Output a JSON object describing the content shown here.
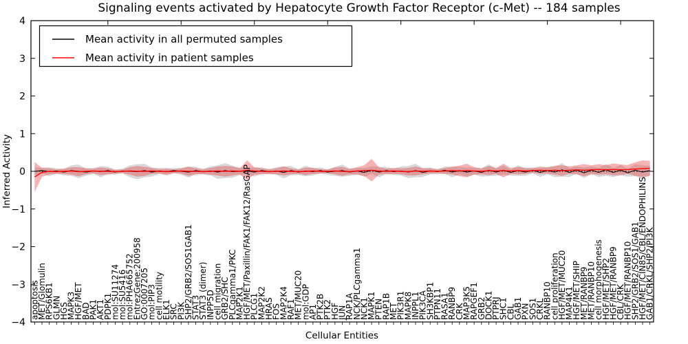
{
  "chart_data": {
    "type": "line",
    "title": "Signaling events activated by Hepatocyte Growth Factor Receptor (c-Met) -- 184 samples",
    "xlabel": "Cellular Entities",
    "ylabel": "Inferred Activity",
    "ylim": [
      -4,
      4
    ],
    "yticks": [
      4,
      3,
      2,
      1,
      0,
      -1,
      -2,
      -3,
      -4
    ],
    "grid": false,
    "legend_position": "upper left",
    "background": "#ffffff",
    "zero_line_style": "dotted",
    "categories": [
      "apoptosis",
      "MET/Glomulin",
      "RPS6KB1",
      "GLMN",
      "HGS",
      "MAPK3",
      "HGF/MET",
      "BAD",
      "PAK1",
      "AKT1",
      "PDPK1",
      "mol:SU11274",
      "mol:SU5416",
      "mol:PHA665752",
      "EntrezGene:200958",
      "GO:0007205",
      "mol:PIP3",
      "cell motility",
      "ELK1",
      "SRC",
      "PI3K",
      "SHP2/GRB2/SOS1GAB1",
      "STAT3",
      "STAT3 (dimer)",
      "INPP5D",
      "cell migration",
      "GRB2/SHC",
      "PLCgamma1/PKC",
      "MAP2K1",
      "HGF/MET/Paxillin/FAK1/FAK12/RasGAP",
      "PLCG1",
      "MAP2K2",
      "HRAS",
      "FOS",
      "MAP2K4",
      "RAF1",
      "MET/MUC20",
      "mol:GDP",
      "AP1",
      "PTK2B",
      "PTK2",
      "HGF",
      "JUN",
      "RAP1A",
      "NCK/PLCgamma1",
      "NCK1",
      "MAPK1",
      "PTEN",
      "RAP1B",
      "MET",
      "PIK3R1",
      "MAPK8",
      "INPPL1",
      "PIK3CA",
      "SH3KBP1",
      "PTPN11",
      "RASA1",
      "RANBP9",
      "CRK",
      "MAP3K5",
      "RAPGEF1",
      "GRB2",
      "DOCK1",
      "PTPRJ",
      "SHC1",
      "CBL",
      "GAB1",
      "PXN",
      "SOS1",
      "CRKL",
      "RANBP10",
      "cell proliferation",
      "HGF/MET/MUC20",
      "MAP4K1",
      "HGF/MET/SHIP",
      "MET/RANBP9",
      "MET/RANBP10",
      "cell morphogenesis",
      "HGF/MET/SHP2",
      "HGF/MET/RANBP9",
      "CBL/CRK",
      "HGF/MET/RANBP10",
      "SHP2/GRB2/SOS1/GAB1",
      "HGF/MET/CIN85/CBL/ENDOPHILINS",
      "GAB1/CRKL/SHP2/PI3K"
    ],
    "series": [
      {
        "name": "Mean activity in all permuted samples",
        "color": "#000000",
        "band_color": "#808080",
        "band_opacity": 0.3,
        "values": [
          0.0,
          0.02,
          -0.01,
          0.01,
          -0.02,
          0.02,
          0.0,
          -0.02,
          0.01,
          -0.01,
          0.02,
          -0.02,
          0.01,
          0.0,
          -0.01,
          0.02,
          -0.02,
          0.01,
          -0.01,
          0.02,
          0.0,
          -0.02,
          0.02,
          -0.01,
          0.01,
          -0.02,
          0.02,
          -0.01,
          0.0,
          0.01,
          -0.02,
          0.02,
          -0.01,
          0.01,
          -0.03,
          0.02,
          -0.02,
          0.01,
          -0.01,
          0.02,
          -0.02,
          0.0,
          0.02,
          -0.02,
          0.01,
          -0.03,
          0.03,
          -0.02,
          0.02,
          -0.01,
          0.01,
          -0.02,
          0.02,
          -0.03,
          0.01,
          -0.01,
          0.03,
          -0.02,
          0.02,
          -0.02,
          0.01,
          -0.03,
          0.03,
          -0.02,
          0.03,
          -0.03,
          0.02,
          -0.02,
          0.03,
          -0.03,
          0.02,
          -0.02,
          0.04,
          -0.03,
          0.03,
          -0.04,
          0.03,
          -0.03,
          0.04,
          -0.03,
          0.03,
          -0.04,
          0.03,
          -0.02,
          0.02
        ],
        "band_halfwidth": [
          0.1,
          0.08,
          0.12,
          0.07,
          0.09,
          0.14,
          0.18,
          0.1,
          0.08,
          0.15,
          0.1,
          0.07,
          0.06,
          0.16,
          0.2,
          0.18,
          0.12,
          0.08,
          0.1,
          0.07,
          0.09,
          0.15,
          0.1,
          0.08,
          0.12,
          0.18,
          0.2,
          0.16,
          0.1,
          0.08,
          0.12,
          0.09,
          0.07,
          0.1,
          0.16,
          0.12,
          0.08,
          0.14,
          0.1,
          0.08,
          0.07,
          0.12,
          0.16,
          0.1,
          0.08,
          0.12,
          0.1,
          0.14,
          0.1,
          0.08,
          0.12,
          0.16,
          0.18,
          0.12,
          0.09,
          0.07,
          0.1,
          0.14,
          0.1,
          0.12,
          0.09,
          0.11,
          0.16,
          0.1,
          0.12,
          0.08,
          0.14,
          0.1,
          0.08,
          0.12,
          0.1,
          0.14,
          0.18,
          0.12,
          0.1,
          0.14,
          0.1,
          0.12,
          0.16,
          0.12,
          0.14,
          0.1,
          0.16,
          0.18,
          0.12
        ]
      },
      {
        "name": "Mean activity in patient samples",
        "color": "#ff0000",
        "band_color": "#e84040",
        "band_opacity": 0.4,
        "values": [
          -0.15,
          -0.03,
          0.0,
          -0.01,
          0.0,
          0.01,
          -0.01,
          0.0,
          0.01,
          0.0,
          0.0,
          -0.01,
          0.0,
          0.01,
          0.0,
          0.0,
          0.01,
          0.0,
          -0.01,
          0.0,
          0.01,
          0.0,
          0.0,
          -0.01,
          0.0,
          0.01,
          0.0,
          0.01,
          0.0,
          0.03,
          0.01,
          0.0,
          -0.01,
          0.0,
          0.01,
          0.0,
          -0.01,
          0.0,
          0.01,
          0.0,
          0.0,
          0.01,
          0.0,
          -0.01,
          0.01,
          0.02,
          0.03,
          0.01,
          0.0,
          0.01,
          0.0,
          -0.01,
          0.01,
          0.0,
          0.01,
          0.0,
          0.01,
          0.02,
          0.01,
          0.02,
          0.01,
          0.0,
          0.02,
          0.01,
          0.02,
          0.01,
          0.02,
          0.01,
          0.02,
          0.03,
          0.02,
          0.03,
          0.02,
          0.03,
          0.04,
          0.03,
          0.04,
          0.05,
          0.04,
          0.05,
          0.04,
          0.05,
          0.06,
          0.07,
          0.08
        ],
        "band_halfwidth": [
          0.4,
          0.12,
          0.08,
          0.06,
          0.07,
          0.1,
          0.12,
          0.08,
          0.06,
          0.1,
          0.08,
          0.05,
          0.05,
          0.1,
          0.14,
          0.12,
          0.08,
          0.06,
          0.08,
          0.05,
          0.07,
          0.12,
          0.08,
          0.06,
          0.09,
          0.12,
          0.14,
          0.12,
          0.08,
          0.26,
          0.1,
          0.08,
          0.06,
          0.08,
          0.12,
          0.08,
          0.06,
          0.1,
          0.08,
          0.06,
          0.05,
          0.09,
          0.12,
          0.07,
          0.1,
          0.14,
          0.3,
          0.1,
          0.07,
          0.08,
          0.08,
          0.1,
          0.12,
          0.08,
          0.07,
          0.05,
          0.08,
          0.1,
          0.14,
          0.18,
          0.1,
          0.08,
          0.12,
          0.08,
          0.18,
          0.08,
          0.1,
          0.08,
          0.06,
          0.1,
          0.08,
          0.12,
          0.14,
          0.1,
          0.12,
          0.16,
          0.12,
          0.14,
          0.12,
          0.16,
          0.14,
          0.12,
          0.18,
          0.22,
          0.2
        ]
      }
    ]
  }
}
